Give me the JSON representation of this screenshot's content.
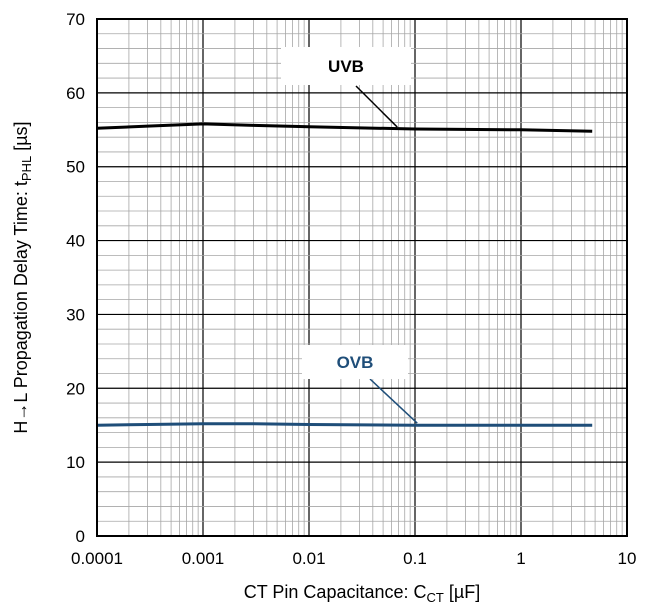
{
  "chart_data": {
    "type": "line",
    "title": "",
    "xlabel": {
      "main": "CT Pin Capacitance: C",
      "sub": "CT",
      "unit": " [µF]"
    },
    "ylabel": {
      "main": "H→L Propagation Delay Time: t",
      "sub": "PHL",
      "unit": " [µs]"
    },
    "x_scale": "log",
    "xlim": [
      0.0001,
      10
    ],
    "ylim": [
      0,
      70
    ],
    "grid": true,
    "x_ticks": [
      "0.0001",
      "0.001",
      "0.01",
      "0.1",
      "1",
      "10"
    ],
    "y_ticks": [
      "0",
      "10",
      "20",
      "30",
      "40",
      "50",
      "60",
      "70"
    ],
    "series": [
      {
        "name": "UVB",
        "color": "#000000",
        "x": [
          0.0001,
          0.0003,
          0.001,
          0.003,
          0.01,
          0.1,
          1,
          4.7
        ],
        "y": [
          55.2,
          55.5,
          55.8,
          55.6,
          55.4,
          55.1,
          55.0,
          54.8
        ]
      },
      {
        "name": "OVB",
        "color": "#1f4e79",
        "x": [
          0.0001,
          0.0003,
          0.001,
          0.003,
          0.01,
          0.1,
          1,
          4.7
        ],
        "y": [
          15.0,
          15.1,
          15.2,
          15.2,
          15.1,
          15.0,
          15.0,
          15.0
        ]
      }
    ]
  }
}
